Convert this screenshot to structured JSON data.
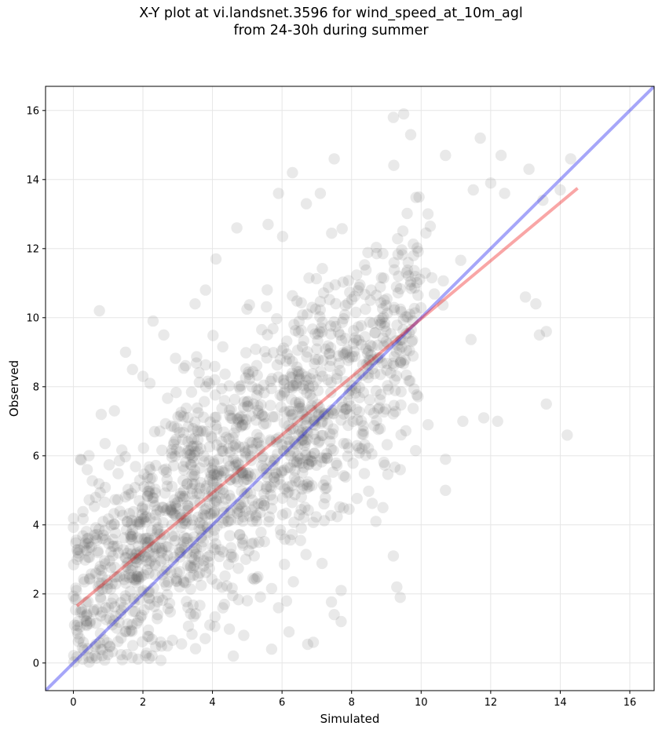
{
  "chart_data": {
    "type": "scatter",
    "title_line1": "X-Y plot at vi.landsnet.3596 for wind_speed_at_10m_agl",
    "title_line2": "from 24-30h during summer",
    "xlabel": "Simulated",
    "ylabel": "Observed",
    "xlim": [
      -0.8,
      16.7
    ],
    "ylim": [
      -0.8,
      16.7
    ],
    "xticks": [
      0,
      2,
      4,
      6,
      8,
      10,
      12,
      14,
      16
    ],
    "yticks": [
      0,
      2,
      4,
      6,
      8,
      10,
      12,
      14,
      16
    ],
    "grid": true,
    "point_color": "#555555",
    "identity_line": {
      "x": [
        -0.8,
        16.7
      ],
      "y": [
        -0.8,
        16.7
      ],
      "color": "#0000ee"
    },
    "fit_line": {
      "x": [
        0.1,
        14.5
      ],
      "y": [
        1.65,
        13.75
      ],
      "color": "#ee0000"
    },
    "outliers": [
      [
        0.75,
        10.2
      ],
      [
        1.5,
        9.0
      ],
      [
        0.8,
        7.2
      ],
      [
        2.0,
        8.3
      ],
      [
        2.6,
        9.5
      ],
      [
        14.2,
        6.6
      ],
      [
        13.6,
        7.5
      ],
      [
        12.2,
        7.0
      ],
      [
        13.0,
        10.6
      ],
      [
        13.3,
        10.4
      ],
      [
        13.4,
        9.5
      ],
      [
        13.6,
        9.6
      ],
      [
        11.7,
        15.2
      ],
      [
        12.3,
        14.7
      ],
      [
        13.1,
        14.3
      ],
      [
        14.3,
        14.6
      ],
      [
        9.2,
        15.8
      ],
      [
        9.5,
        15.9
      ],
      [
        9.7,
        15.3
      ],
      [
        10.7,
        14.7
      ],
      [
        7.5,
        14.6
      ],
      [
        6.3,
        14.2
      ],
      [
        12.0,
        13.9
      ],
      [
        12.4,
        13.6
      ],
      [
        11.5,
        13.7
      ],
      [
        14.0,
        13.7
      ],
      [
        13.5,
        13.4
      ],
      [
        10.7,
        5.0
      ],
      [
        10.7,
        5.9
      ],
      [
        9.4,
        1.9
      ],
      [
        9.3,
        2.2
      ],
      [
        9.2,
        3.1
      ],
      [
        6.9,
        0.6
      ],
      [
        4.9,
        0.8
      ],
      [
        4.6,
        0.2
      ],
      [
        0.2,
        5.9
      ],
      [
        0.4,
        5.6
      ],
      [
        8.9,
        4.5
      ],
      [
        8.7,
        4.1
      ],
      [
        9.4,
        5.6
      ],
      [
        11.2,
        7.0
      ],
      [
        11.8,
        7.1
      ],
      [
        10.2,
        6.9
      ],
      [
        8.3,
        6.2
      ],
      [
        7.7,
        2.1
      ],
      [
        7.5,
        1.4
      ],
      [
        7.7,
        1.2
      ],
      [
        5.7,
        0.4
      ],
      [
        5.9,
        1.6
      ],
      [
        6.2,
        0.9
      ],
      [
        3.5,
        10.4
      ],
      [
        3.8,
        10.8
      ],
      [
        4.1,
        11.7
      ],
      [
        4.7,
        12.6
      ],
      [
        5.6,
        12.7
      ],
      [
        5.9,
        13.6
      ],
      [
        6.7,
        13.3
      ],
      [
        7.1,
        13.6
      ],
      [
        2.2,
        8.1
      ],
      [
        1.7,
        8.5
      ]
    ]
  }
}
